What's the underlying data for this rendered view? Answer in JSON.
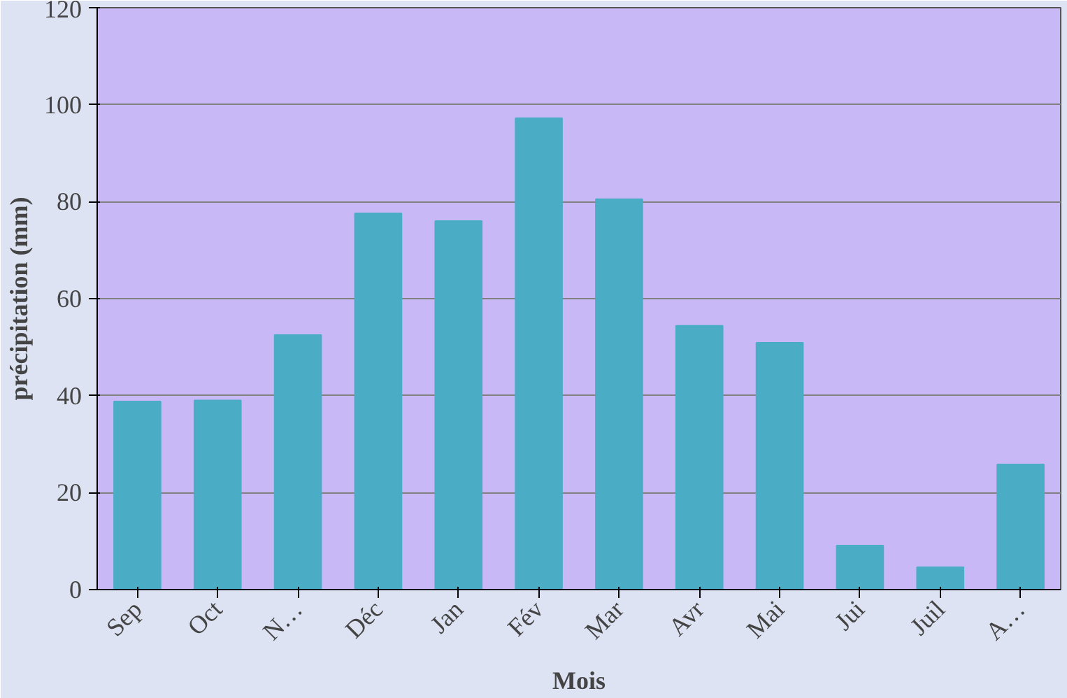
{
  "chart_data": {
    "type": "bar",
    "xlabel": "Mois",
    "ylabel": "précipitation (mm)",
    "categories": [
      "Sep",
      "Oct",
      "N…",
      "Déc",
      "Jan",
      "Fév",
      "Mar",
      "Avr",
      "Mai",
      "Jui",
      "Juil",
      "A…"
    ],
    "values": [
      38.8,
      39,
      52.5,
      77.6,
      76,
      97.2,
      80.5,
      54.4,
      50.9,
      9.1,
      4.6,
      25.8
    ],
    "color": "#4bacc6",
    "ylim": [
      0,
      120
    ],
    "yticks": [
      0,
      20,
      40,
      60,
      80,
      100,
      120
    ],
    "grid": "y"
  }
}
